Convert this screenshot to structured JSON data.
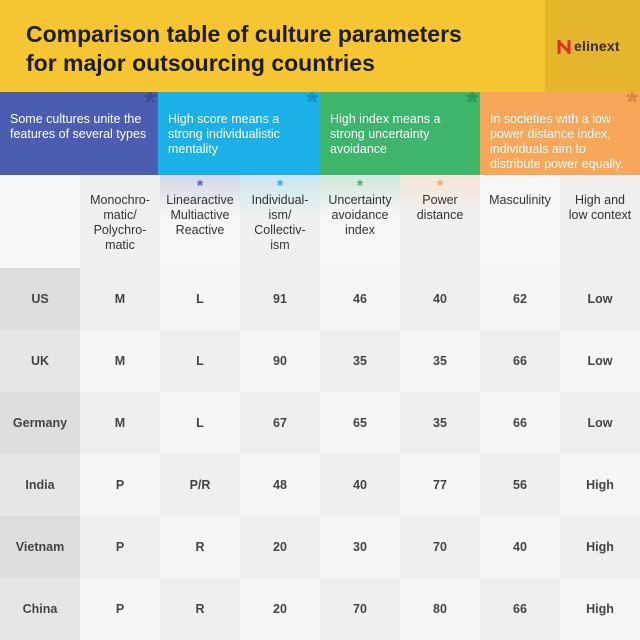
{
  "header": {
    "title_lines": [
      "Comparison table of culture parameters",
      "for major outsourcing countries"
    ],
    "logo": "elinext"
  },
  "notes": [
    "Some cultures unite the features of several types",
    "High score means a strong individualistic mentality",
    "High index means a strong uncertainty avoidance",
    "In societies with a low power distance index, individuals aim to distribute power equally."
  ],
  "table": {
    "columns": [
      "Monochro-\nmatic/\nPolychro-\nmatic",
      "Linearactive\nMultiactive\nReactive",
      "Individual-\nism/\nCollectiv-\nism",
      "Uncertainty\navoidance\nindex",
      "Power\ndistance",
      "Masculinity",
      "High and\nlow context"
    ],
    "rows": [
      [
        "US",
        "M",
        "L",
        91,
        46,
        40,
        62,
        "Low"
      ],
      [
        "UK",
        "M",
        "L",
        90,
        35,
        35,
        66,
        "Low"
      ],
      [
        "Germany",
        "M",
        "L",
        67,
        65,
        35,
        66,
        "Low"
      ],
      [
        "India",
        "P",
        "P/R",
        48,
        40,
        77,
        56,
        "High"
      ],
      [
        "Vietnam",
        "P",
        "R",
        20,
        30,
        70,
        40,
        "High"
      ],
      [
        "China",
        "P",
        "R",
        20,
        70,
        80,
        66,
        "High"
      ]
    ]
  }
}
